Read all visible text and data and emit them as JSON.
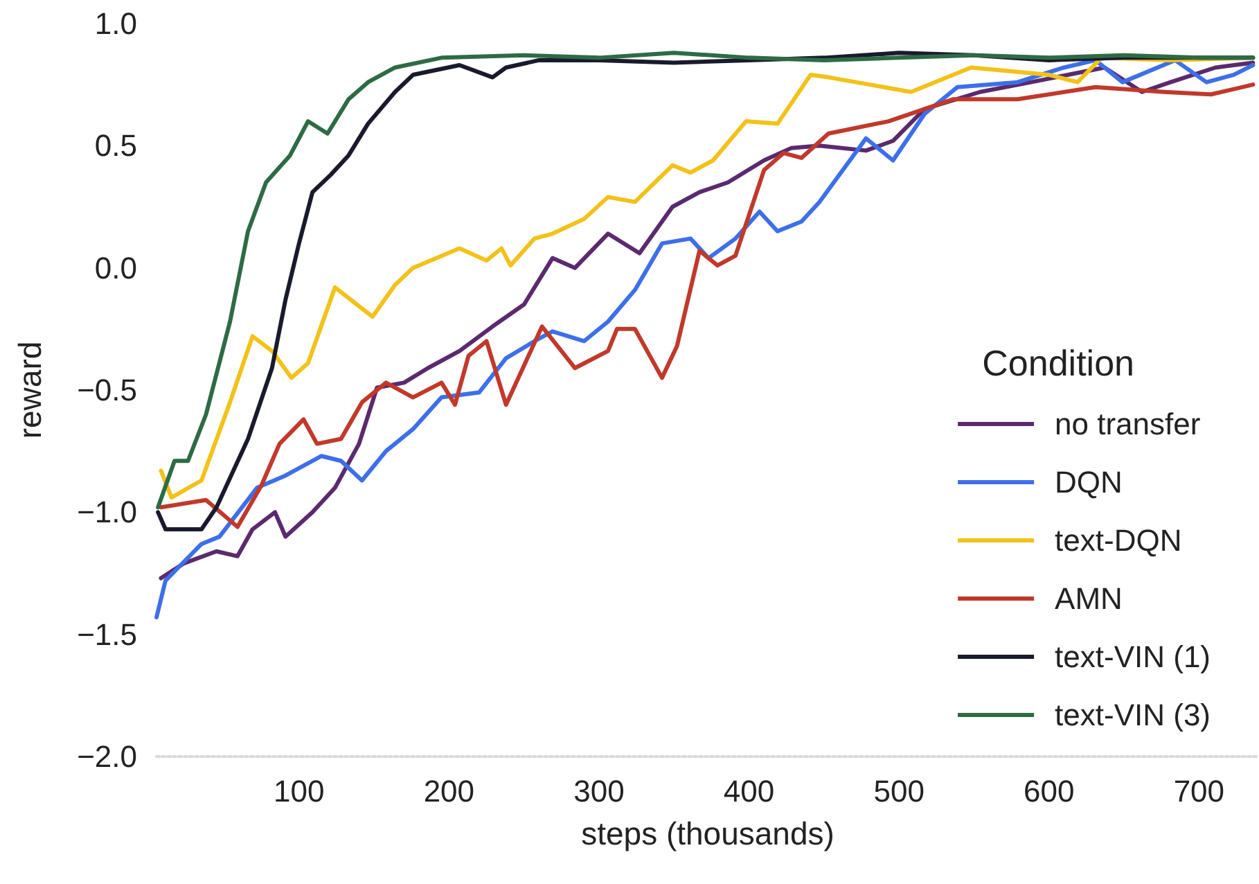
{
  "chart_data": {
    "type": "line",
    "xlabel": "steps (thousands)",
    "ylabel": "reward",
    "legend_title": "Condition",
    "legend": "right",
    "grid": false,
    "marker": "none",
    "line_style": "solid",
    "xlim": [
      5,
      740
    ],
    "xticks": [
      100,
      200,
      300,
      400,
      500,
      600,
      700
    ],
    "ylim": [
      -2,
      1
    ],
    "yticks": [
      {
        "value": -2,
        "label": "−2.0"
      },
      {
        "value": -1.5,
        "label": "−1.5"
      },
      {
        "value": -1,
        "label": "−1.0"
      },
      {
        "value": -0.5,
        "label": "−0.5"
      },
      {
        "value": 0,
        "label": "0.0"
      },
      {
        "value": 0.5,
        "label": "0.5"
      },
      {
        "value": 1,
        "label": "1.0"
      }
    ],
    "series": [
      {
        "name": "no transfer",
        "color": "#5b2a6e",
        "x": [
          8,
          23,
          45,
          59,
          69,
          84,
          91,
          109,
          124,
          140,
          152,
          170,
          186,
          207,
          229,
          250,
          269,
          284,
          306,
          327,
          349,
          367,
          386,
          410,
          428,
          447,
          478,
          496,
          517,
          554,
          588,
          637,
          662,
          681,
          711,
          736
        ],
        "values": [
          -1.27,
          -1.21,
          -1.16,
          -1.18,
          -1.07,
          -1.0,
          -1.1,
          -1.0,
          -0.9,
          -0.72,
          -0.49,
          -0.47,
          -0.41,
          -0.34,
          -0.24,
          -0.15,
          0.04,
          0.0,
          0.14,
          0.06,
          0.25,
          0.31,
          0.35,
          0.44,
          0.49,
          0.5,
          0.48,
          0.52,
          0.65,
          0.72,
          0.76,
          0.82,
          0.72,
          0.76,
          0.82,
          0.84
        ]
      },
      {
        "name": "DQN",
        "color": "#3d6fe8",
        "x": [
          5,
          11,
          35,
          47,
          72,
          91,
          115,
          128,
          142,
          158,
          176,
          195,
          220,
          238,
          257,
          269,
          290,
          306,
          324,
          342,
          361,
          373,
          391,
          407,
          419,
          435,
          447,
          478,
          496,
          517,
          539,
          579,
          610,
          631,
          649,
          684,
          705,
          723,
          736
        ],
        "values": [
          -1.43,
          -1.28,
          -1.13,
          -1.1,
          -0.9,
          -0.85,
          -0.77,
          -0.79,
          -0.87,
          -0.75,
          -0.66,
          -0.53,
          -0.51,
          -0.37,
          -0.3,
          -0.26,
          -0.3,
          -0.22,
          -0.09,
          0.1,
          0.12,
          0.04,
          0.12,
          0.23,
          0.15,
          0.19,
          0.27,
          0.53,
          0.44,
          0.63,
          0.74,
          0.76,
          0.82,
          0.85,
          0.76,
          0.85,
          0.76,
          0.79,
          0.83
        ]
      },
      {
        "name": "text-DQN",
        "color": "#f2c21a",
        "x": [
          8,
          15,
          35,
          54,
          69,
          82,
          95,
          106,
          124,
          149,
          164,
          176,
          207,
          225,
          235,
          241,
          257,
          269,
          290,
          306,
          324,
          349,
          361,
          376,
          398,
          419,
          441,
          453,
          508,
          548,
          600,
          619,
          635,
          680,
          736
        ],
        "values": [
          -0.83,
          -0.94,
          -0.87,
          -0.55,
          -0.28,
          -0.34,
          -0.45,
          -0.39,
          -0.08,
          -0.2,
          -0.07,
          0.0,
          0.08,
          0.03,
          0.08,
          0.01,
          0.12,
          0.14,
          0.2,
          0.29,
          0.27,
          0.42,
          0.39,
          0.44,
          0.6,
          0.59,
          0.79,
          0.78,
          0.72,
          0.82,
          0.79,
          0.76,
          0.86,
          0.85,
          0.86
        ]
      },
      {
        "name": "AMN",
        "color": "#c0392b",
        "x": [
          8,
          38,
          59,
          75,
          87,
          103,
          112,
          128,
          142,
          158,
          176,
          195,
          204,
          213,
          225,
          238,
          262,
          284,
          306,
          312,
          324,
          342,
          352,
          367,
          379,
          391,
          410,
          423,
          435,
          453,
          493,
          536,
          579,
          631,
          677,
          708,
          736
        ],
        "values": [
          -0.98,
          -0.95,
          -1.06,
          -0.89,
          -0.72,
          -0.62,
          -0.72,
          -0.7,
          -0.55,
          -0.47,
          -0.53,
          -0.47,
          -0.56,
          -0.36,
          -0.3,
          -0.56,
          -0.24,
          -0.41,
          -0.34,
          -0.25,
          -0.25,
          -0.45,
          -0.32,
          0.07,
          0.01,
          0.05,
          0.4,
          0.47,
          0.45,
          0.55,
          0.6,
          0.69,
          0.69,
          0.74,
          0.72,
          0.71,
          0.75
        ]
      },
      {
        "name": "text-VIN (1)",
        "color": "#1a1a2e",
        "x": [
          6,
          11,
          35,
          45,
          66,
          82,
          91,
          100,
          109,
          121,
          133,
          146,
          164,
          176,
          207,
          229,
          238,
          260,
          300,
          350,
          400,
          450,
          500,
          550,
          600,
          650,
          700,
          736
        ],
        "values": [
          -1.0,
          -1.07,
          -1.07,
          -0.98,
          -0.7,
          -0.41,
          -0.13,
          0.1,
          0.31,
          0.38,
          0.46,
          0.59,
          0.72,
          0.79,
          0.83,
          0.78,
          0.82,
          0.85,
          0.85,
          0.84,
          0.85,
          0.86,
          0.88,
          0.87,
          0.85,
          0.86,
          0.86,
          0.86
        ]
      },
      {
        "name": "text-VIN (3)",
        "color": "#2e6b45",
        "x": [
          6,
          17,
          26,
          38,
          54,
          66,
          78,
          94,
          106,
          119,
          133,
          146,
          164,
          195,
          250,
          300,
          350,
          400,
          450,
          500,
          550,
          600,
          650,
          700,
          736
        ],
        "values": [
          -0.98,
          -0.79,
          -0.79,
          -0.6,
          -0.22,
          0.15,
          0.35,
          0.46,
          0.6,
          0.55,
          0.69,
          0.76,
          0.82,
          0.86,
          0.87,
          0.86,
          0.88,
          0.86,
          0.85,
          0.86,
          0.87,
          0.86,
          0.87,
          0.86,
          0.86
        ]
      }
    ]
  }
}
